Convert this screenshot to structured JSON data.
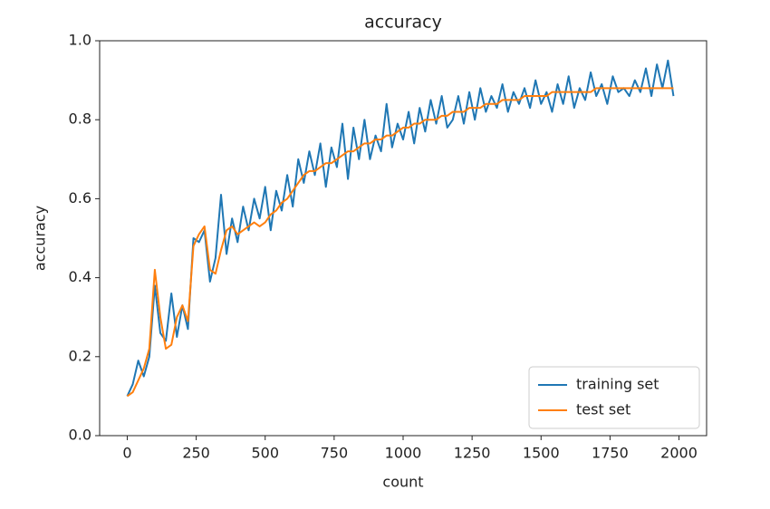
{
  "chart_data": {
    "type": "line",
    "title": "accuracy",
    "xlabel": "count",
    "ylabel": "accuracy",
    "x": [
      0,
      20,
      40,
      60,
      80,
      100,
      120,
      140,
      160,
      180,
      200,
      220,
      240,
      260,
      280,
      300,
      320,
      340,
      360,
      380,
      400,
      420,
      440,
      460,
      480,
      500,
      520,
      540,
      560,
      580,
      600,
      620,
      640,
      660,
      680,
      700,
      720,
      740,
      760,
      780,
      800,
      820,
      840,
      860,
      880,
      900,
      920,
      940,
      960,
      980,
      1000,
      1020,
      1040,
      1060,
      1080,
      1100,
      1120,
      1140,
      1160,
      1180,
      1200,
      1220,
      1240,
      1260,
      1280,
      1300,
      1320,
      1340,
      1360,
      1380,
      1400,
      1420,
      1440,
      1460,
      1480,
      1500,
      1520,
      1540,
      1560,
      1580,
      1600,
      1620,
      1640,
      1660,
      1680,
      1700,
      1720,
      1740,
      1760,
      1780,
      1800,
      1820,
      1840,
      1860,
      1880,
      1900,
      1920,
      1940,
      1960,
      1980
    ],
    "series": [
      {
        "name": "training set",
        "color": "#1f77b4",
        "values": [
          0.1,
          0.13,
          0.19,
          0.15,
          0.2,
          0.38,
          0.26,
          0.24,
          0.36,
          0.25,
          0.33,
          0.27,
          0.5,
          0.49,
          0.52,
          0.39,
          0.45,
          0.61,
          0.46,
          0.55,
          0.49,
          0.58,
          0.52,
          0.6,
          0.55,
          0.63,
          0.52,
          0.62,
          0.57,
          0.66,
          0.58,
          0.7,
          0.64,
          0.72,
          0.66,
          0.74,
          0.63,
          0.73,
          0.68,
          0.79,
          0.65,
          0.78,
          0.7,
          0.8,
          0.7,
          0.76,
          0.72,
          0.84,
          0.73,
          0.79,
          0.75,
          0.82,
          0.74,
          0.83,
          0.77,
          0.85,
          0.79,
          0.86,
          0.78,
          0.8,
          0.86,
          0.79,
          0.87,
          0.8,
          0.88,
          0.82,
          0.86,
          0.83,
          0.89,
          0.82,
          0.87,
          0.84,
          0.88,
          0.83,
          0.9,
          0.84,
          0.87,
          0.82,
          0.89,
          0.84,
          0.91,
          0.83,
          0.88,
          0.85,
          0.92,
          0.86,
          0.89,
          0.84,
          0.91,
          0.87,
          0.88,
          0.86,
          0.9,
          0.87,
          0.93,
          0.86,
          0.94,
          0.88,
          0.95,
          0.86
        ]
      },
      {
        "name": "test set",
        "color": "#ff7f0e",
        "values": [
          0.1,
          0.11,
          0.14,
          0.17,
          0.22,
          0.42,
          0.3,
          0.22,
          0.23,
          0.3,
          0.33,
          0.29,
          0.48,
          0.51,
          0.53,
          0.42,
          0.41,
          0.47,
          0.52,
          0.53,
          0.51,
          0.52,
          0.53,
          0.54,
          0.53,
          0.54,
          0.56,
          0.57,
          0.59,
          0.6,
          0.62,
          0.64,
          0.66,
          0.67,
          0.67,
          0.68,
          0.69,
          0.69,
          0.7,
          0.71,
          0.72,
          0.72,
          0.73,
          0.74,
          0.74,
          0.75,
          0.75,
          0.76,
          0.76,
          0.77,
          0.78,
          0.78,
          0.79,
          0.79,
          0.8,
          0.8,
          0.8,
          0.81,
          0.81,
          0.82,
          0.82,
          0.82,
          0.83,
          0.83,
          0.83,
          0.84,
          0.84,
          0.84,
          0.85,
          0.85,
          0.85,
          0.85,
          0.86,
          0.86,
          0.86,
          0.86,
          0.86,
          0.87,
          0.87,
          0.87,
          0.87,
          0.87,
          0.87,
          0.87,
          0.87,
          0.88,
          0.88,
          0.88,
          0.88,
          0.88,
          0.88,
          0.88,
          0.88,
          0.88,
          0.88,
          0.88,
          0.88,
          0.88,
          0.88,
          0.88
        ]
      }
    ],
    "xlim": [
      -100,
      2100
    ],
    "xticks": [
      0,
      250,
      500,
      750,
      1000,
      1250,
      1500,
      1750,
      2000
    ],
    "ylim": [
      0,
      1
    ],
    "yticks": [
      {
        "value": 0,
        "label": "0.0"
      },
      0.2,
      0.4,
      0.6,
      0.8,
      {
        "value": 1,
        "label": "1.0"
      }
    ],
    "legend": "lower right"
  }
}
